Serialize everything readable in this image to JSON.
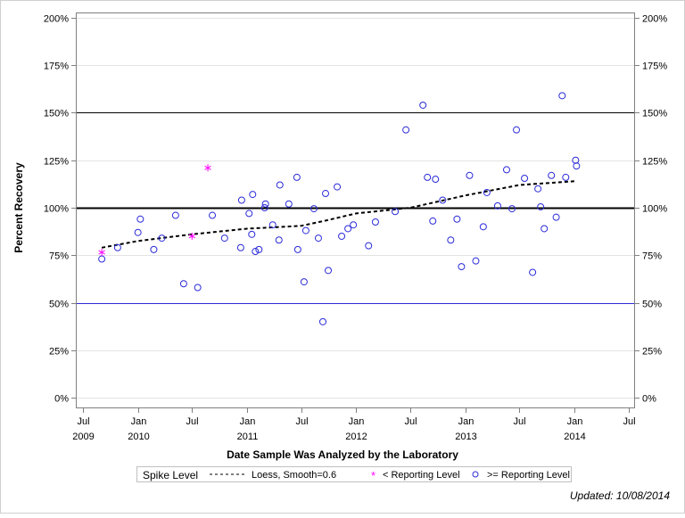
{
  "chart_data": {
    "type": "scatter",
    "xlabel": "Date Sample Was Analyzed by the Laboratory",
    "ylabel": "Percent Recovery",
    "xlim": [
      "2009-06-07",
      "2014-07-23"
    ],
    "ylim": [
      -5.6,
      202.8
    ],
    "grid": true,
    "x_ticks": [
      {
        "date": "2009-07-01",
        "label": "Jul",
        "year": "2009"
      },
      {
        "date": "2010-01-01",
        "label": "Jan",
        "year": "2010"
      },
      {
        "date": "2010-07-01",
        "label": "Jul",
        "year": ""
      },
      {
        "date": "2011-01-01",
        "label": "Jan",
        "year": "2011"
      },
      {
        "date": "2011-07-01",
        "label": "Jul",
        "year": ""
      },
      {
        "date": "2012-01-01",
        "label": "Jan",
        "year": "2012"
      },
      {
        "date": "2012-07-01",
        "label": "Jul",
        "year": ""
      },
      {
        "date": "2013-01-01",
        "label": "Jan",
        "year": "2013"
      },
      {
        "date": "2013-07-01",
        "label": "Jul",
        "year": ""
      },
      {
        "date": "2014-01-01",
        "label": "Jan",
        "year": "2014"
      },
      {
        "date": "2014-07-01",
        "label": "Jul",
        "year": ""
      }
    ],
    "y_ticks": [
      {
        "value": 0,
        "label": "0%"
      },
      {
        "value": 25,
        "label": "25%"
      },
      {
        "value": 50,
        "label": "50%"
      },
      {
        "value": 75,
        "label": "75%"
      },
      {
        "value": 100,
        "label": "100%"
      },
      {
        "value": 125,
        "label": "125%"
      },
      {
        "value": 150,
        "label": "150%"
      },
      {
        "value": 175,
        "label": "175%"
      },
      {
        "value": 200,
        "label": "200%"
      }
    ],
    "reference_lines": [
      {
        "value": 150,
        "color": "#000000",
        "weight": "thin"
      },
      {
        "value": 100,
        "color": "#000000",
        "weight": "thick"
      },
      {
        "value": 50,
        "color": "#2b2bd9",
        "weight": "thin"
      }
    ],
    "series": [
      {
        "name": ">= Reporting Level",
        "marker": "circle",
        "color": "#2b2bd9",
        "points": [
          [
            "2009-09-02",
            73
          ],
          [
            "2009-10-25",
            79
          ],
          [
            "2010-01-01",
            87
          ],
          [
            "2010-01-09",
            94
          ],
          [
            "2010-02-23",
            78
          ],
          [
            "2010-03-22",
            84
          ],
          [
            "2010-05-07",
            96
          ],
          [
            "2010-06-03",
            60
          ],
          [
            "2010-07-20",
            58
          ],
          [
            "2010-09-07",
            96
          ],
          [
            "2010-10-18",
            84
          ],
          [
            "2010-12-11",
            79
          ],
          [
            "2010-12-14",
            104
          ],
          [
            "2011-01-08",
            97
          ],
          [
            "2011-01-17",
            86
          ],
          [
            "2011-01-20",
            107
          ],
          [
            "2011-01-29",
            77
          ],
          [
            "2011-02-10",
            78
          ],
          [
            "2011-03-01",
            100
          ],
          [
            "2011-03-04",
            102
          ],
          [
            "2011-03-28",
            91
          ],
          [
            "2011-04-18",
            83
          ],
          [
            "2011-04-21",
            112
          ],
          [
            "2011-05-21",
            102
          ],
          [
            "2011-06-17",
            116
          ],
          [
            "2011-06-20",
            78
          ],
          [
            "2011-07-11",
            61
          ],
          [
            "2011-07-17",
            88
          ],
          [
            "2011-08-13",
            99.5
          ],
          [
            "2011-08-28",
            84
          ],
          [
            "2011-09-12",
            40
          ],
          [
            "2011-09-21",
            107.5
          ],
          [
            "2011-09-30",
            67
          ],
          [
            "2011-10-30",
            111
          ],
          [
            "2011-11-14",
            85
          ],
          [
            "2011-12-05",
            89
          ],
          [
            "2011-12-23",
            91
          ],
          [
            "2012-02-12",
            80
          ],
          [
            "2012-03-06",
            92.5
          ],
          [
            "2012-05-11",
            98
          ],
          [
            "2012-06-16",
            141
          ],
          [
            "2012-08-12",
            154
          ],
          [
            "2012-08-27",
            116
          ],
          [
            "2012-09-14",
            93
          ],
          [
            "2012-09-23",
            115
          ],
          [
            "2012-10-17",
            104
          ],
          [
            "2012-11-13",
            83
          ],
          [
            "2012-12-04",
            94
          ],
          [
            "2012-12-19",
            69
          ],
          [
            "2013-01-15",
            117
          ],
          [
            "2013-02-05",
            72
          ],
          [
            "2013-03-02",
            90
          ],
          [
            "2013-03-14",
            108
          ],
          [
            "2013-04-19",
            101
          ],
          [
            "2013-05-19",
            120
          ],
          [
            "2013-06-06",
            99.5
          ],
          [
            "2013-06-21",
            141
          ],
          [
            "2013-07-18",
            115.5
          ],
          [
            "2013-08-14",
            66
          ],
          [
            "2013-09-01",
            110
          ],
          [
            "2013-09-10",
            100.5
          ],
          [
            "2013-09-22",
            89
          ],
          [
            "2013-10-16",
            117
          ],
          [
            "2013-11-01",
            95
          ],
          [
            "2013-11-21",
            159
          ],
          [
            "2013-12-03",
            116
          ],
          [
            "2014-01-05",
            125
          ],
          [
            "2014-01-08",
            122
          ]
        ]
      },
      {
        "name": "< Reporting Level",
        "marker": "asterisk",
        "color": "#ff00ff",
        "points": [
          [
            "2009-09-02",
            76.5
          ],
          [
            "2010-07-01",
            85
          ],
          [
            "2010-08-23",
            121
          ]
        ]
      },
      {
        "name": "Loess, Smooth=0.6",
        "marker": "dashed-line",
        "color": "#000000",
        "points": [
          [
            "2009-09-02",
            79
          ],
          [
            "2010-01-01",
            82.5
          ],
          [
            "2010-07-01",
            86
          ],
          [
            "2011-01-01",
            89
          ],
          [
            "2011-07-01",
            90.5
          ],
          [
            "2011-09-15",
            93
          ],
          [
            "2012-01-01",
            97
          ],
          [
            "2012-07-01",
            100
          ],
          [
            "2013-01-01",
            106.5
          ],
          [
            "2013-07-01",
            112
          ],
          [
            "2014-01-05",
            114
          ]
        ]
      }
    ],
    "legend": {
      "placement": "bottom",
      "title": "Spike Level",
      "entries": [
        "Loess, Smooth=0.6",
        "< Reporting Level",
        ">= Reporting Level"
      ]
    }
  },
  "footer": {
    "updated": "Updated: 10/08/2014"
  }
}
